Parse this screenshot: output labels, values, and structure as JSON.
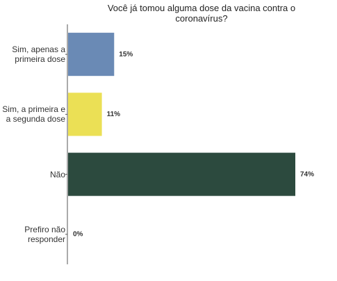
{
  "chart_data": {
    "type": "barh",
    "title": "Você já tomou alguma dose da vacina contra o coronavírus?",
    "categories": [
      "Sim, apenas a primeira dose",
      "Sim, a primeira e a segunda dose",
      "Não",
      "Prefiro não responder"
    ],
    "values": [
      15,
      11,
      74,
      0
    ],
    "value_labels": [
      "15%",
      "11%",
      "74%",
      "0%"
    ],
    "colors": [
      "#6a8ab5",
      "#ebe055",
      "#2c4a3e",
      "#888888"
    ]
  }
}
